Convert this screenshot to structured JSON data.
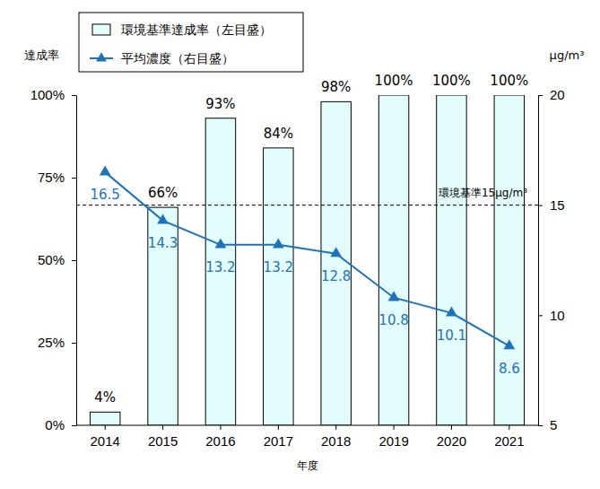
{
  "chart_data": {
    "type": "bar",
    "categories": [
      "2014",
      "2015",
      "2016",
      "2017",
      "2018",
      "2019",
      "2020",
      "2021"
    ],
    "x_label": "年度",
    "y_label": "達成率",
    "y2_label": "μg/m³",
    "ylim": [
      0,
      100
    ],
    "yticks": [
      {
        "value": 0,
        "label": "0%"
      },
      {
        "value": 25,
        "label": "25%"
      },
      {
        "value": 50,
        "label": "50%"
      },
      {
        "value": 75,
        "label": "75%"
      },
      {
        "value": 100,
        "label": "100%"
      }
    ],
    "y2lim": [
      5,
      20
    ],
    "y2ticks": [
      5,
      10,
      15,
      20
    ],
    "grid": false,
    "legend": "top-left",
    "data_labels": true,
    "series": [
      {
        "name": "環境基準達成率（左目盛）",
        "type": "bar",
        "color": "#e3fcfc",
        "values": [
          4,
          66,
          93,
          84,
          98,
          100,
          100,
          100
        ],
        "value_labels": [
          "4%",
          "66%",
          "93%",
          "84%",
          "98%",
          "100%",
          "100%",
          "100%"
        ]
      },
      {
        "name": "平均濃度（右目盛）",
        "type": "line",
        "axis": "y2",
        "color": "#1f72b8",
        "marker": "triangle",
        "values": [
          16.5,
          14.3,
          13.2,
          13.2,
          12.8,
          10.8,
          10.1,
          8.6
        ]
      }
    ],
    "reference_line": {
      "label": "環境基準15μg/m³",
      "value": 15,
      "axis": "y2",
      "line_style": "dashed"
    }
  }
}
